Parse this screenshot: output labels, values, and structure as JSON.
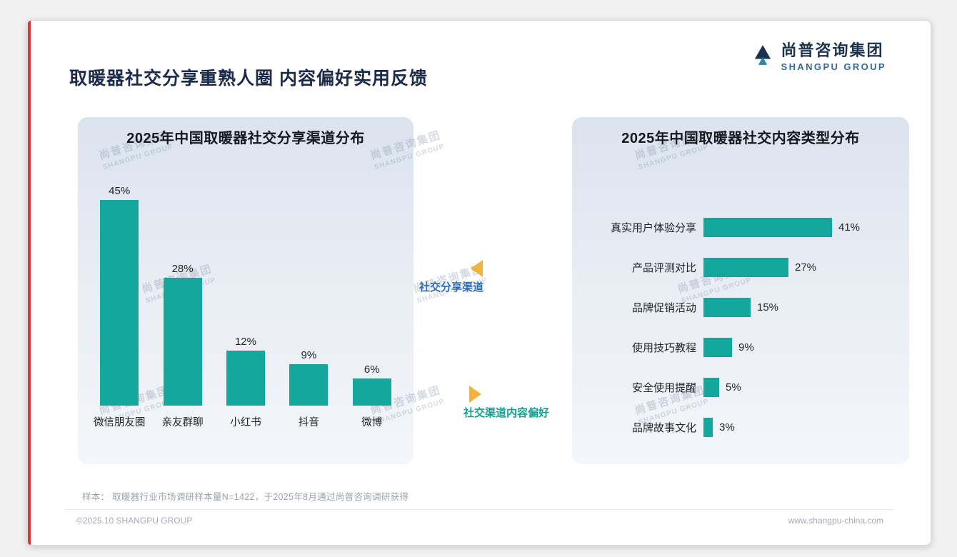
{
  "page": {
    "title": "取暖器社交分享重熟人圈 内容偏好实用反馈",
    "footnote": "样本： 取暖器行业市场调研样本量N=1422，于2025年8月通过尚普咨询调研获得",
    "footer_left": "©2025.10 SHANGPU GROUP",
    "footer_right": "www.shangpu-china.com"
  },
  "logo": {
    "cn": "尚普咨询集团",
    "en": "SHANGPU GROUP"
  },
  "watermark": {
    "cn": "尚普咨询集团",
    "en": "SHANGPU GROUP"
  },
  "middle_labels": {
    "top": "社交分享渠道",
    "bottom": "社交渠道内容偏好"
  },
  "colors": {
    "bar_teal": "#14a79b",
    "accent_red": "#d93a35",
    "label_blue": "#2e6cb5",
    "label_teal": "#12a190",
    "arrow_orange": "#f2b33d",
    "logo_navy": "#1c3350",
    "logo_blue": "#336b9e"
  },
  "chart_data": [
    {
      "type": "bar",
      "orientation": "vertical",
      "title": "2025年中国取暖器社交分享渠道分布",
      "categories": [
        "微信朋友圈",
        "亲友群聊",
        "小红书",
        "抖音",
        "微博"
      ],
      "values": [
        45,
        28,
        12,
        9,
        6
      ],
      "unit": "%",
      "ylim": [
        0,
        50
      ],
      "grid": false,
      "data_labels": true,
      "legend": "none"
    },
    {
      "type": "bar",
      "orientation": "horizontal",
      "title": "2025年中国取暖器社交内容类型分布",
      "categories": [
        "真实用户体验分享",
        "产品评测对比",
        "品牌促销活动",
        "使用技巧教程",
        "安全使用提醒",
        "品牌故事文化"
      ],
      "values": [
        41,
        27,
        15,
        9,
        5,
        3
      ],
      "unit": "%",
      "xlim": [
        0,
        45
      ],
      "grid": false,
      "data_labels": true,
      "legend": "none"
    }
  ]
}
